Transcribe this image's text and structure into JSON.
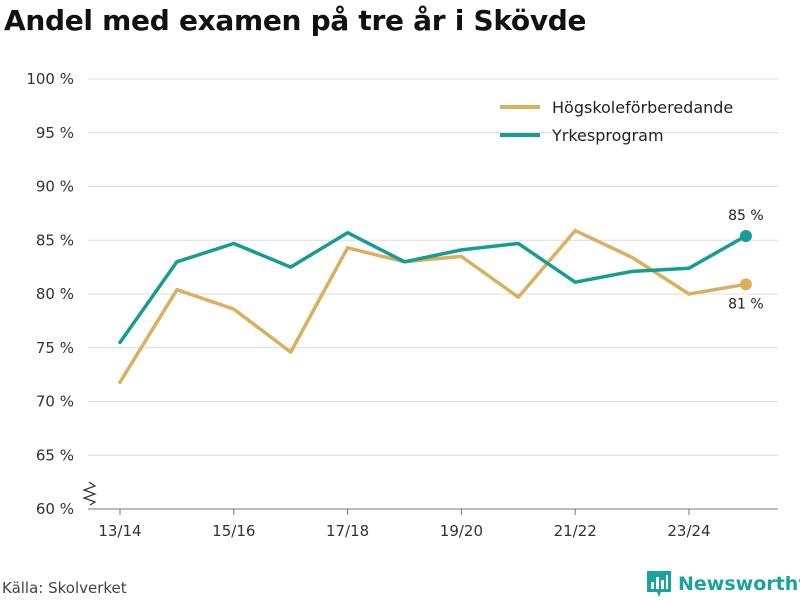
{
  "title": "Andel med examen på tre år i Skövde",
  "source": "Källa: Skolverket",
  "brand": {
    "name": "Newsworthy",
    "icon": "bar-chart-logo-icon",
    "color": "#1aa39a"
  },
  "chart_data": {
    "type": "line",
    "title": "Andel med examen på tre år i Skövde",
    "x": [
      "13/14",
      "14/15",
      "15/16",
      "16/17",
      "17/18",
      "18/19",
      "19/20",
      "20/21",
      "21/22",
      "22/23",
      "23/24",
      "24/25"
    ],
    "x_tick_labels": [
      "13/14",
      "15/16",
      "17/18",
      "19/20",
      "21/22",
      "23/24"
    ],
    "y_tick_labels": [
      "100 %",
      "95 %",
      "90 %",
      "85 %",
      "80 %",
      "75 %",
      "70 %",
      "65 %",
      "60 %"
    ],
    "ylim": [
      60,
      100
    ],
    "y_ticks": [
      60,
      65,
      70,
      75,
      80,
      85,
      90,
      95,
      100
    ],
    "y_axis_break": true,
    "grid": true,
    "legend_position": "top-right",
    "series": [
      {
        "name": "Högskoleförberedande",
        "color": "#d9b05e",
        "values": [
          71.8,
          80.4,
          78.6,
          74.6,
          84.3,
          83.0,
          83.5,
          79.7,
          85.9,
          83.4,
          80.0,
          80.9
        ],
        "end_label": "81 %"
      },
      {
        "name": "Yrkesprogram",
        "color": "#169c93",
        "values": [
          75.5,
          83.0,
          84.7,
          82.5,
          85.7,
          83.0,
          84.1,
          84.7,
          81.1,
          82.1,
          82.4,
          85.4
        ],
        "end_label": "85 %"
      }
    ]
  }
}
